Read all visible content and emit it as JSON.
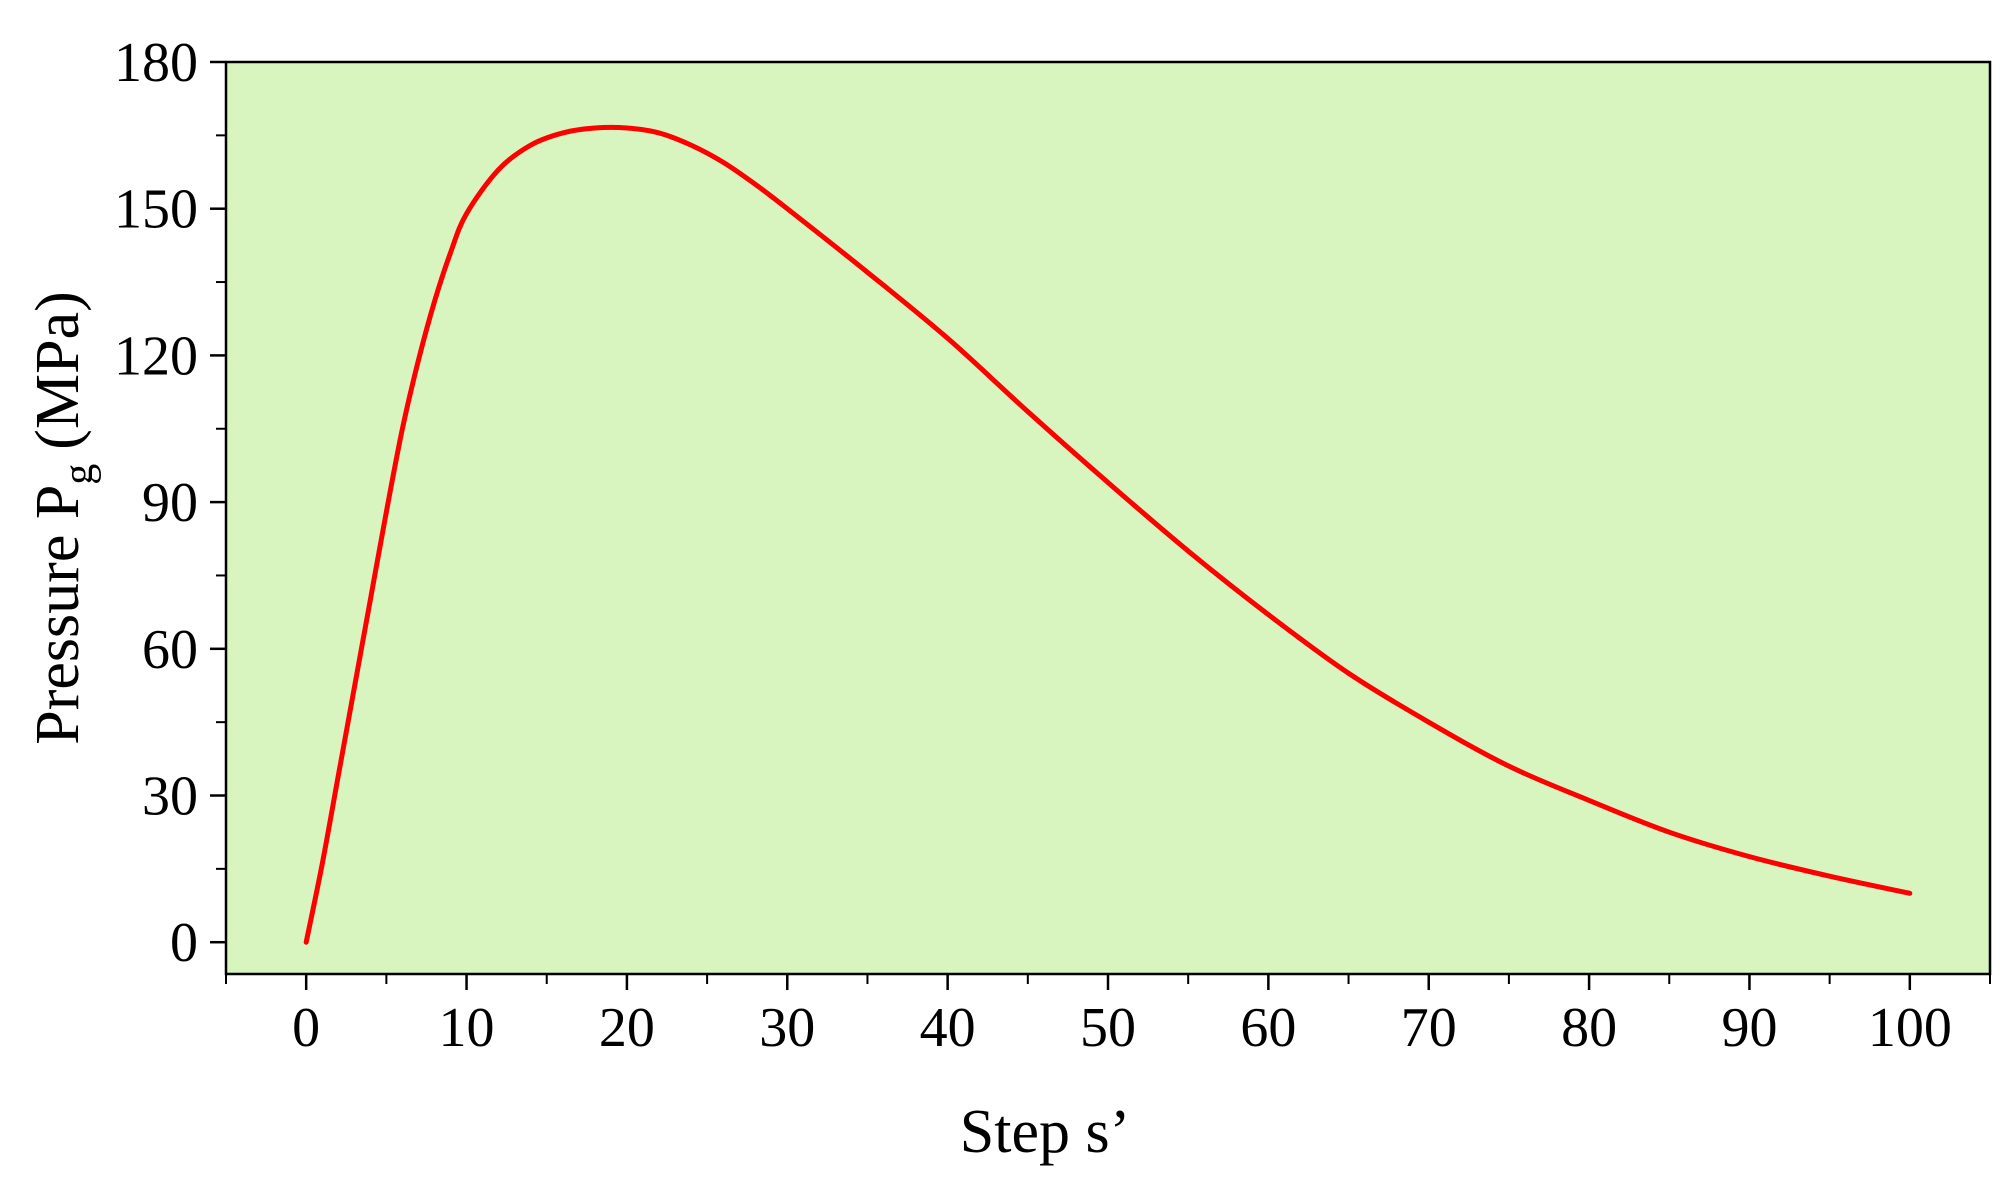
{
  "chart_data": {
    "type": "line",
    "title": "",
    "xlabel": "Step  s’",
    "ylabel_main": "Pressure  P",
    "ylabel_sub": "g",
    "ylabel_unit": "(MPa)",
    "xlim": [
      -5,
      105
    ],
    "ylim": [
      -6.5,
      180
    ],
    "xticks": [
      0,
      10,
      20,
      30,
      40,
      50,
      60,
      70,
      80,
      90,
      100
    ],
    "yticks": [
      0,
      30,
      60,
      90,
      120,
      150,
      180
    ],
    "plot_background": "#d8f5bf",
    "series": [
      {
        "color": "#ff0000",
        "x": [
          0,
          1,
          2,
          3,
          4,
          5,
          6,
          7,
          8,
          9,
          10,
          12,
          14,
          16,
          18,
          20,
          22,
          24,
          26,
          28,
          30,
          35,
          40,
          45,
          50,
          55,
          60,
          65,
          70,
          75,
          80,
          85,
          90,
          95,
          100
        ],
        "y": [
          0,
          16,
          34,
          52,
          70,
          88,
          105,
          119,
          131,
          141,
          149,
          158,
          163,
          165.5,
          166.5,
          166.5,
          165.5,
          163,
          159.5,
          155,
          150,
          137,
          123.5,
          108.5,
          94,
          80,
          67,
          55,
          45,
          36,
          29,
          22.5,
          17.5,
          13.5,
          10
        ]
      }
    ]
  }
}
